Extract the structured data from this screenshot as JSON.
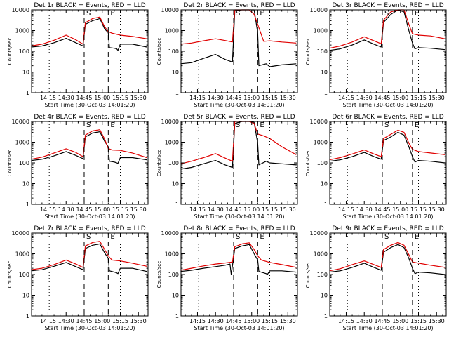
{
  "figure": {
    "colors": {
      "events": "#000000",
      "lld": "#e00000",
      "axes": "#000000",
      "background": "#ffffff"
    },
    "xtick_labels": [
      "14:15",
      "14:30",
      "14:45",
      "15:00",
      "15:15",
      "15:30"
    ],
    "ytick_labels": [
      "1",
      "10",
      "100",
      "1000",
      "10000"
    ],
    "ylabel": "Counts/sec",
    "xlabel": "Start Time (30-Oct-03 14:01:20)",
    "marker_labels": [
      "S",
      "E"
    ]
  },
  "chart_data": [
    {
      "type": "line",
      "title": "Det 1r BLACK = Events, RED = LLD",
      "yscale": "log",
      "ylim": [
        1,
        10000
      ],
      "xlim": [
        "14:01:20",
        "15:38:00"
      ],
      "dashed_lines": [
        "14:45:00",
        "15:05:00"
      ],
      "dotted_lines": [
        "14:16:00",
        "15:15:00"
      ],
      "series": [
        {
          "name": "BLACK = Events",
          "time": [
            "14:01",
            "14:10",
            "14:20",
            "14:30",
            "14:38",
            "14:44",
            "14:46",
            "14:52",
            "14:58",
            "15:02",
            "15:05",
            "15:06",
            "15:10",
            "15:12",
            "15:13",
            "15:15",
            "15:25",
            "15:37"
          ],
          "values": [
            160,
            180,
            260,
            420,
            260,
            180,
            2000,
            3000,
            3800,
            1200,
            800,
            150,
            140,
            130,
            110,
            220,
            220,
            160
          ]
        },
        {
          "name": "RED = LLD",
          "time": [
            "14:01",
            "14:10",
            "14:20",
            "14:30",
            "14:38",
            "14:44",
            "14:46",
            "14:52",
            "14:58",
            "15:02",
            "15:05",
            "15:08",
            "15:15",
            "15:25",
            "15:37"
          ],
          "values": [
            180,
            220,
            340,
            600,
            360,
            220,
            2400,
            3800,
            4500,
            1500,
            900,
            750,
            600,
            520,
            400
          ]
        }
      ]
    },
    {
      "type": "line",
      "title": "Det 2r BLACK = Events, RED = LLD",
      "yscale": "log",
      "ylim": [
        1,
        10000
      ],
      "xlim": [
        "14:01:20",
        "15:38:00"
      ],
      "dashed_lines": [
        "14:45:00",
        "15:05:00"
      ],
      "dotted_lines": [
        "14:16:00",
        "15:15:00"
      ],
      "series": [
        {
          "name": "BLACK = Events",
          "time": [
            "14:01",
            "14:10",
            "14:20",
            "14:30",
            "14:38",
            "14:44",
            "14:46",
            "14:52",
            "14:58",
            "15:02",
            "15:05",
            "15:06",
            "15:12",
            "15:15",
            "15:25",
            "15:37"
          ],
          "values": [
            25,
            28,
            45,
            70,
            40,
            30,
            9000,
            10000,
            10000,
            10000,
            800,
            20,
            25,
            18,
            22,
            25
          ]
        },
        {
          "name": "RED = LLD",
          "time": [
            "14:01",
            "14:10",
            "14:20",
            "14:30",
            "14:38",
            "14:44",
            "14:46",
            "14:52",
            "14:58",
            "15:02",
            "15:05",
            "15:10",
            "15:15",
            "15:25",
            "15:37"
          ],
          "values": [
            220,
            250,
            320,
            400,
            330,
            280,
            10000,
            10000,
            10000,
            6000,
            2000,
            300,
            320,
            280,
            250
          ]
        }
      ]
    },
    {
      "type": "line",
      "title": "Det 3r BLACK = Events, RED = LLD",
      "yscale": "log",
      "ylim": [
        1,
        10000
      ],
      "xlim": [
        "14:01:20",
        "15:38:00"
      ],
      "dashed_lines": [
        "14:45:00",
        "15:10:00"
      ],
      "dotted_lines": [
        "14:16:00",
        "15:15:00"
      ],
      "series": [
        {
          "name": "BLACK = Events",
          "time": [
            "14:01",
            "14:10",
            "14:20",
            "14:30",
            "14:38",
            "14:44",
            "14:46",
            "14:52",
            "14:58",
            "15:03",
            "15:07",
            "15:10",
            "15:12",
            "15:15",
            "15:25",
            "15:37"
          ],
          "values": [
            110,
            130,
            200,
            350,
            220,
            160,
            2500,
            6000,
            10000,
            8000,
            1000,
            250,
            130,
            150,
            140,
            120
          ]
        },
        {
          "name": "RED = LLD",
          "time": [
            "14:01",
            "14:10",
            "14:20",
            "14:30",
            "14:38",
            "14:44",
            "14:46",
            "14:52",
            "14:58",
            "15:03",
            "15:07",
            "15:10",
            "15:15",
            "15:25",
            "15:37"
          ],
          "values": [
            140,
            180,
            280,
            500,
            320,
            230,
            3200,
            8000,
            10000,
            10000,
            2000,
            700,
            600,
            550,
            400
          ]
        }
      ]
    },
    {
      "type": "line",
      "title": "Det 4r BLACK = Events, RED = LLD",
      "yscale": "log",
      "ylim": [
        1,
        10000
      ],
      "xlim": [
        "14:01:20",
        "15:38:00"
      ],
      "dashed_lines": [
        "14:45:00",
        "15:05:00"
      ],
      "dotted_lines": [
        "14:16:00",
        "15:15:00"
      ],
      "series": [
        {
          "name": "BLACK = Events",
          "time": [
            "14:01",
            "14:10",
            "14:20",
            "14:30",
            "14:38",
            "14:44",
            "14:46",
            "14:52",
            "14:58",
            "15:02",
            "15:05",
            "15:06",
            "15:10",
            "15:12",
            "15:13",
            "15:15",
            "15:25",
            "15:37"
          ],
          "values": [
            130,
            150,
            220,
            350,
            230,
            160,
            1800,
            2800,
            3200,
            1100,
            600,
            120,
            110,
            100,
            95,
            180,
            180,
            140
          ]
        },
        {
          "name": "RED = LLD",
          "time": [
            "14:01",
            "14:10",
            "14:20",
            "14:30",
            "14:38",
            "14:44",
            "14:46",
            "14:52",
            "14:58",
            "15:02",
            "15:05",
            "15:08",
            "15:15",
            "15:25",
            "15:37"
          ],
          "values": [
            150,
            190,
            300,
            480,
            320,
            200,
            2200,
            3500,
            4000,
            1400,
            500,
            420,
            400,
            300,
            180
          ]
        }
      ]
    },
    {
      "type": "line",
      "title": "Det 5r BLACK = Events, RED = LLD",
      "yscale": "log",
      "ylim": [
        1,
        10000
      ],
      "xlim": [
        "14:01:20",
        "15:38:00"
      ],
      "dashed_lines": [
        "14:45:00",
        "15:05:00"
      ],
      "dotted_lines": [
        "14:16:00",
        "15:15:00"
      ],
      "series": [
        {
          "name": "BLACK = Events",
          "time": [
            "14:01",
            "14:10",
            "14:20",
            "14:30",
            "14:38",
            "14:44",
            "14:46",
            "14:52",
            "14:58",
            "15:02",
            "15:05",
            "15:06",
            "15:12",
            "15:15",
            "15:25",
            "15:37"
          ],
          "values": [
            50,
            60,
            90,
            130,
            80,
            60,
            8000,
            10000,
            10000,
            9000,
            900,
            80,
            120,
            100,
            90,
            80
          ]
        },
        {
          "name": "RED = LLD",
          "time": [
            "14:01",
            "14:10",
            "14:20",
            "14:30",
            "14:38",
            "14:44",
            "14:46",
            "14:52",
            "14:58",
            "15:02",
            "15:05",
            "15:10",
            "15:15",
            "15:25",
            "15:37"
          ],
          "values": [
            90,
            120,
            180,
            280,
            170,
            120,
            10000,
            10000,
            10000,
            8000,
            2500,
            2000,
            1500,
            600,
            250
          ]
        }
      ]
    },
    {
      "type": "line",
      "title": "Det 6r BLACK = Events, RED = LLD",
      "yscale": "log",
      "ylim": [
        1,
        10000
      ],
      "xlim": [
        "14:01:20",
        "15:38:00"
      ],
      "dashed_lines": [
        "14:45:00",
        "15:10:00"
      ],
      "dotted_lines": [
        "14:16:00",
        "15:15:00"
      ],
      "series": [
        {
          "name": "BLACK = Events",
          "time": [
            "14:01",
            "14:10",
            "14:20",
            "14:30",
            "14:38",
            "14:44",
            "14:46",
            "14:52",
            "14:58",
            "15:03",
            "15:07",
            "15:10",
            "15:12",
            "15:15",
            "15:25",
            "15:37"
          ],
          "values": [
            120,
            140,
            200,
            320,
            200,
            150,
            1200,
            1800,
            3000,
            2200,
            600,
            200,
            110,
            130,
            120,
            100
          ]
        },
        {
          "name": "RED = LLD",
          "time": [
            "14:01",
            "14:10",
            "14:20",
            "14:30",
            "14:38",
            "14:44",
            "14:46",
            "14:52",
            "14:58",
            "15:03",
            "15:07",
            "15:10",
            "15:15",
            "15:25",
            "15:37"
          ],
          "values": [
            140,
            180,
            270,
            420,
            270,
            200,
            1500,
            2400,
            3800,
            3000,
            900,
            450,
            350,
            300,
            250
          ]
        }
      ]
    },
    {
      "type": "line",
      "title": "Det 7r BLACK = Events, RED = LLD",
      "yscale": "log",
      "ylim": [
        1,
        10000
      ],
      "xlim": [
        "14:01:20",
        "15:38:00"
      ],
      "dashed_lines": [
        "14:45:00",
        "15:05:00"
      ],
      "dotted_lines": [
        "14:16:00",
        "15:15:00"
      ],
      "series": [
        {
          "name": "BLACK = Events",
          "time": [
            "14:01",
            "14:10",
            "14:20",
            "14:30",
            "14:38",
            "14:44",
            "14:46",
            "14:52",
            "14:58",
            "15:02",
            "15:05",
            "15:06",
            "15:10",
            "15:12",
            "15:13",
            "15:15",
            "15:25",
            "15:37"
          ],
          "values": [
            150,
            170,
            250,
            380,
            240,
            170,
            1800,
            2600,
            3000,
            1100,
            600,
            150,
            130,
            120,
            110,
            200,
            200,
            140
          ]
        },
        {
          "name": "RED = LLD",
          "time": [
            "14:01",
            "14:10",
            "14:20",
            "14:30",
            "14:38",
            "14:44",
            "14:46",
            "14:52",
            "14:58",
            "15:02",
            "15:05",
            "15:08",
            "15:15",
            "15:25",
            "15:37"
          ],
          "values": [
            170,
            200,
            300,
            500,
            320,
            220,
            2400,
            3500,
            4000,
            1600,
            800,
            500,
            450,
            350,
            250
          ]
        }
      ]
    },
    {
      "type": "line",
      "title": "Det 8r BLACK = Events, RED = LLD",
      "yscale": "log",
      "ylim": [
        1,
        10000
      ],
      "xlim": [
        "14:01:20",
        "15:38:00"
      ],
      "dashed_lines": [
        "14:45:00",
        "15:05:00"
      ],
      "dotted_lines": [
        "14:16:00",
        "15:15:00"
      ],
      "series": [
        {
          "name": "BLACK = Events",
          "time": [
            "14:01",
            "14:10",
            "14:20",
            "14:30",
            "14:38",
            "14:42",
            "14:43",
            "14:46",
            "14:52",
            "14:58",
            "15:02",
            "15:05",
            "15:06",
            "15:10",
            "15:12",
            "15:13",
            "15:15",
            "15:25",
            "15:37"
          ],
          "values": [
            140,
            160,
            200,
            240,
            280,
            320,
            100,
            1800,
            2400,
            2800,
            1000,
            500,
            140,
            120,
            110,
            100,
            150,
            150,
            130
          ]
        },
        {
          "name": "RED = LLD",
          "time": [
            "14:01",
            "14:10",
            "14:20",
            "14:30",
            "14:38",
            "14:44",
            "14:46",
            "14:52",
            "14:58",
            "15:02",
            "15:05",
            "15:08",
            "15:15",
            "15:25",
            "15:37"
          ],
          "values": [
            160,
            200,
            260,
            320,
            360,
            400,
            2200,
            3000,
            3400,
            1600,
            800,
            500,
            380,
            300,
            220
          ]
        }
      ]
    },
    {
      "type": "line",
      "title": "Det 9r BLACK = Events, RED = LLD",
      "yscale": "log",
      "ylim": [
        1,
        10000
      ],
      "xlim": [
        "14:01:20",
        "15:38:00"
      ],
      "dashed_lines": [
        "14:45:00",
        "15:10:00"
      ],
      "dotted_lines": [
        "14:16:00",
        "15:15:00"
      ],
      "series": [
        {
          "name": "BLACK = Events",
          "time": [
            "14:01",
            "14:10",
            "14:20",
            "14:30",
            "14:38",
            "14:44",
            "14:46",
            "14:52",
            "14:58",
            "15:03",
            "15:07",
            "15:10",
            "15:12",
            "15:15",
            "15:25",
            "15:37"
          ],
          "values": [
            130,
            150,
            220,
            350,
            220,
            160,
            1200,
            2000,
            2800,
            2000,
            600,
            200,
            110,
            130,
            120,
            100
          ]
        },
        {
          "name": "RED = LLD",
          "time": [
            "14:01",
            "14:10",
            "14:20",
            "14:30",
            "14:38",
            "14:44",
            "14:46",
            "14:52",
            "14:58",
            "15:03",
            "15:07",
            "15:10",
            "15:15",
            "15:25",
            "15:37"
          ],
          "values": [
            150,
            190,
            300,
            450,
            300,
            220,
            1600,
            2600,
            3500,
            2600,
            900,
            400,
            350,
            280,
            220
          ]
        }
      ]
    }
  ]
}
